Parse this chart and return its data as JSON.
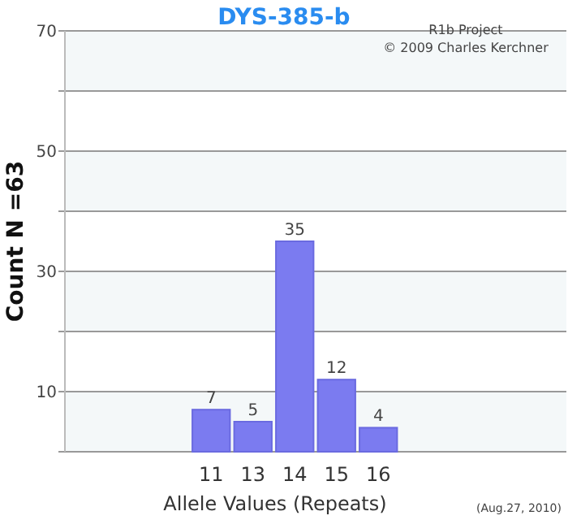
{
  "chart_data": {
    "type": "bar",
    "title": "DYS-385-b",
    "xlabel": "Allele Values (Repeats)",
    "ylabel": "Count N =63",
    "categories": [
      null,
      null,
      null,
      "11",
      "13",
      "14",
      "15",
      "16",
      null,
      null,
      null,
      null
    ],
    "values": [
      null,
      null,
      null,
      7,
      5,
      35,
      12,
      4,
      null,
      null,
      null,
      null
    ],
    "color": "#7b7bf0",
    "data_labels": true,
    "ylim": [
      0,
      70
    ],
    "yticks": [
      {
        "value": 0,
        "label": null
      },
      10,
      {
        "value": 20,
        "label": null
      },
      30,
      {
        "value": 40,
        "label": null
      },
      50,
      {
        "value": 60,
        "label": null
      },
      70
    ],
    "grid": "y",
    "annotations": [
      "R1b Project",
      "© 2009 Charles Kerchner",
      "(Aug.27, 2010)"
    ]
  }
}
